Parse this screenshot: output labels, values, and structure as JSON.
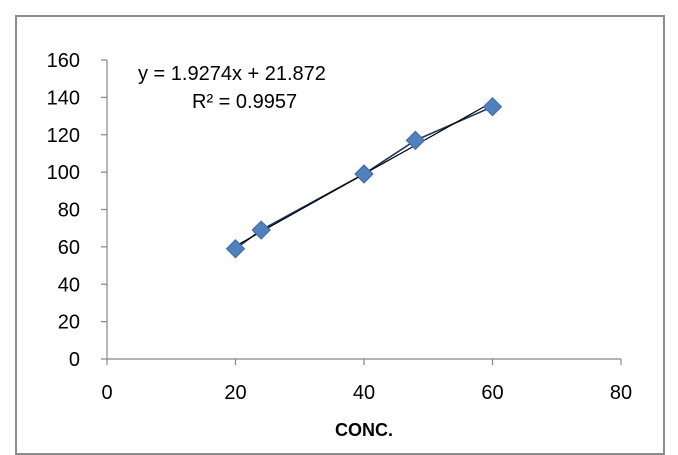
{
  "chart_data": {
    "type": "scatter",
    "title": "",
    "xlabel": "CONC.",
    "ylabel": "",
    "xlim": [
      0,
      80
    ],
    "ylim": [
      0,
      160
    ],
    "x_ticks": [
      0,
      20,
      40,
      60,
      80
    ],
    "y_ticks": [
      0,
      20,
      40,
      60,
      80,
      100,
      120,
      140,
      160
    ],
    "grid": false,
    "legend": "none",
    "series": [
      {
        "values": [
          {
            "x": 20,
            "y": 59
          },
          {
            "x": 24,
            "y": 69
          },
          {
            "x": 40,
            "y": 99
          },
          {
            "x": 48,
            "y": 117
          },
          {
            "x": 60,
            "y": 135
          }
        ],
        "color": "#4f81bd",
        "line_color": "#1f3864",
        "trendline": {
          "slope": 1.9274,
          "intercept": 21.872
        }
      }
    ],
    "annotations": {
      "equation": "y = 1.9274x + 21.872",
      "r_squared": "R² = 0.9957"
    },
    "colors": {
      "axis": "#868686",
      "frame": "#8c8c8c"
    }
  }
}
